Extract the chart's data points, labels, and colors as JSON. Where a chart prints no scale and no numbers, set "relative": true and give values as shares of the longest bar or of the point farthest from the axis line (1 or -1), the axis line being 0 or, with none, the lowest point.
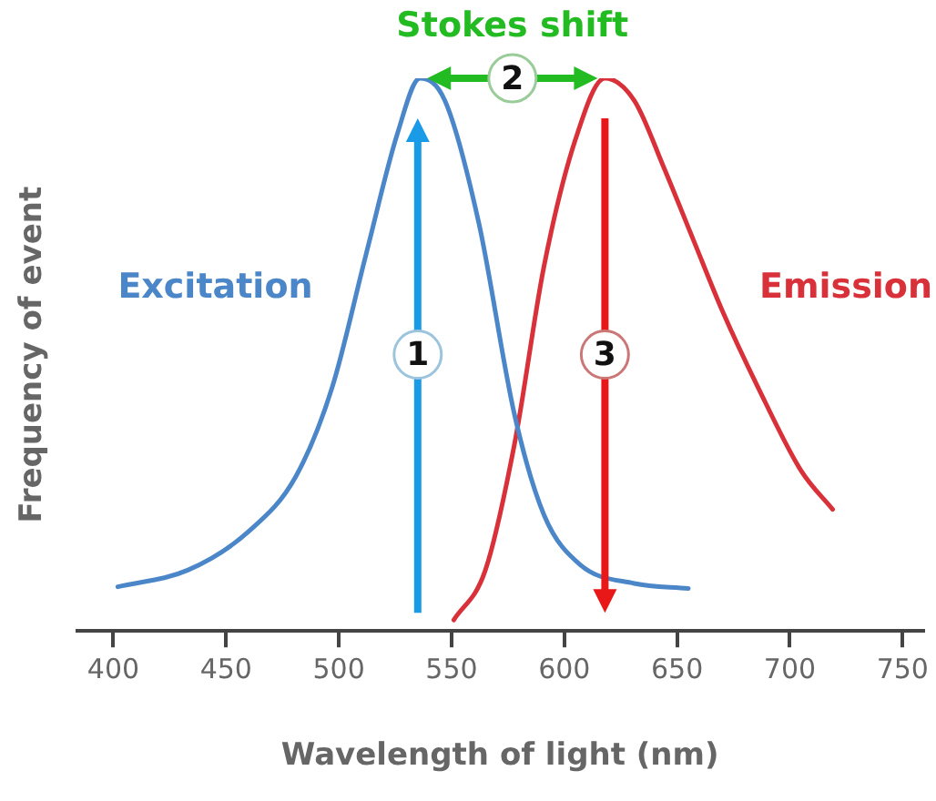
{
  "chart_data": {
    "type": "line",
    "relative": true,
    "xlabel": "Wavelength of light (nm)",
    "ylabel": "Frequency of event",
    "xlim": [
      384,
      759
    ],
    "xticks": [
      400,
      450,
      500,
      550,
      600,
      650,
      700,
      750
    ],
    "grid": false,
    "legend": false,
    "marker": "none",
    "line_style": "solid",
    "series": [
      {
        "name": "Excitation",
        "color": "#4a86c8",
        "x": [
          402,
          433,
          460,
          481,
          497,
          512,
          526,
          536,
          547,
          562,
          578,
          591,
          607,
          631,
          655
        ],
        "values": [
          0.08,
          0.11,
          0.18,
          0.28,
          0.44,
          0.68,
          0.9,
          1.0,
          0.96,
          0.74,
          0.39,
          0.21,
          0.12,
          0.086,
          0.077
        ]
      },
      {
        "name": "Emission",
        "color": "#d9313a",
        "x": [
          551,
          565,
          578,
          591,
          605,
          618,
          631,
          644,
          657,
          670,
          686,
          705,
          719
        ],
        "values": [
          0.02,
          0.11,
          0.34,
          0.66,
          0.89,
          1.0,
          0.96,
          0.84,
          0.71,
          0.58,
          0.44,
          0.29,
          0.22
        ]
      }
    ],
    "annotations": [
      "Stokes shift",
      {
        "text": "1",
        "x": 535,
        "y": 0.5
      },
      {
        "text": "2",
        "x": 577,
        "y": 1.0
      },
      {
        "text": "3",
        "x": 618,
        "y": 0.5
      }
    ]
  }
}
